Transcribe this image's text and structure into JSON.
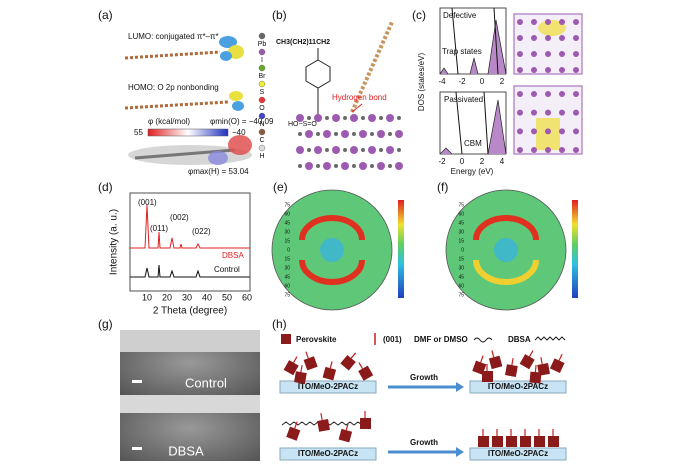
{
  "a": {
    "label": "(a)",
    "lumo": "LUMO: conjugated π*–π*",
    "homo": "HOMO: O 2p nonbonding",
    "phi": "φ (kcal/mol)",
    "phi_min": "φmin(O) = −40.09",
    "cb_max": "55",
    "cb_min": "−40",
    "phi_max": "φmax(H) = 53.04",
    "atoms": [
      "Pb",
      "I",
      "Br",
      "S",
      "O",
      "N",
      "C",
      "H"
    ]
  },
  "b": {
    "label": "(b)",
    "chain": "CH3(CH2)11CH2",
    "group": "HO−S=O",
    "hbond": "Hydrogen bond"
  },
  "c": {
    "label": "(c)",
    "defective": "Defective",
    "trap": "Trap states",
    "passivated": "Passivated",
    "cbm": "CBM",
    "ylabel": "DOS (states/eV)",
    "xlabel": "Energy (eV)",
    "top_xticks": [
      "-4",
      "-2",
      "0",
      "2"
    ],
    "bottom_xticks": [
      "-2",
      "0",
      "2",
      "4"
    ]
  },
  "d": {
    "label": "(d)",
    "ylabel": "Intensity (a. u.)",
    "xlabel": "2 Theta (degree)",
    "xticks": [
      "10",
      "20",
      "30",
      "40",
      "50",
      "60"
    ],
    "peaks": [
      "(001)",
      "(011)",
      "(002)",
      "(022)"
    ],
    "dbsa": "DBSA",
    "control": "Control"
  },
  "e": {
    "label": "(e)",
    "rticks": [
      "75",
      "60",
      "45",
      "30",
      "15",
      "0",
      "15",
      "30",
      "45",
      "60",
      "75"
    ]
  },
  "f": {
    "label": "(f)",
    "rticks": [
      "75",
      "60",
      "45",
      "30",
      "15",
      "0",
      "15",
      "30",
      "45",
      "60",
      "75"
    ]
  },
  "g": {
    "label": "(g)",
    "control": "Control",
    "dbsa": "DBSA"
  },
  "h": {
    "label": "(h)",
    "perovskite": "Perovskite",
    "orient": "(001)",
    "solvent": "DMF or DMSO",
    "dbsa": "DBSA",
    "substrates": [
      "ITO/MeO-2PACz",
      "ITO/MeO-2PACz",
      "ITO/MeO-2PACz",
      "ITO/MeO-2PACz"
    ],
    "growth": [
      "Growth",
      "Growth"
    ]
  }
}
